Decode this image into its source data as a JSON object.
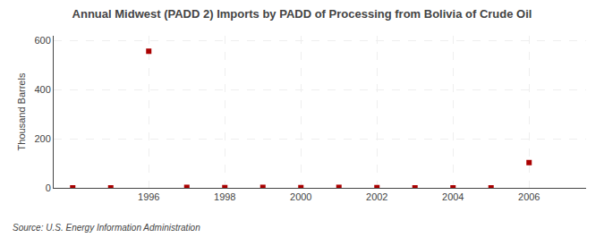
{
  "chart_data": {
    "type": "scatter",
    "title": "Annual Midwest (PADD 2) Imports by PADD of Processing from Bolivia of Crude Oil",
    "ylabel": "Thousand Barrels",
    "annotations": [
      "Source: U.S. Energy Information Administration"
    ],
    "x": [
      1994,
      1995,
      1996,
      1997,
      1998,
      1999,
      2000,
      2001,
      2002,
      2003,
      2004,
      2005,
      2006
    ],
    "values": [
      0,
      0,
      557,
      2,
      1,
      2,
      1,
      2,
      1,
      0,
      0,
      0,
      103
    ],
    "color": "#aa0000",
    "marker": "square",
    "xlim": [
      1993.5,
      2007.5
    ],
    "xticks": [
      1996,
      1998,
      2000,
      2002,
      2004,
      2006
    ],
    "ylim": [
      0,
      620
    ],
    "yticks": [
      0,
      200,
      400,
      600
    ],
    "grid": true
  }
}
